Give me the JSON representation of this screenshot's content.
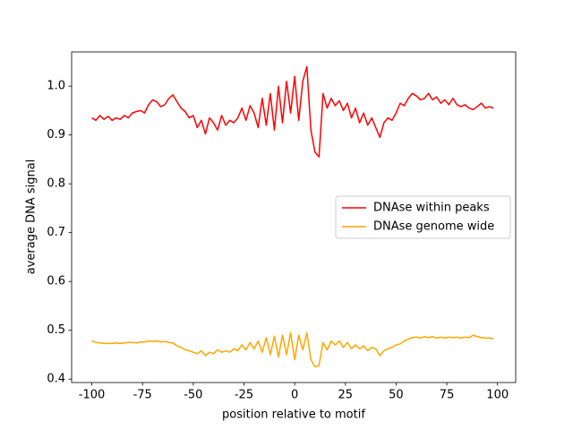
{
  "chart_data": {
    "type": "line",
    "xlabel": "position relative to motif",
    "ylabel": "average DNA signal",
    "x": [
      -100,
      -98,
      -96,
      -94,
      -92,
      -90,
      -88,
      -86,
      -84,
      -82,
      -80,
      -78,
      -76,
      -74,
      -72,
      -70,
      -68,
      -66,
      -64,
      -62,
      -60,
      -58,
      -56,
      -54,
      -52,
      -50,
      -48,
      -46,
      -44,
      -42,
      -40,
      -38,
      -36,
      -34,
      -32,
      -30,
      -28,
      -26,
      -24,
      -22,
      -20,
      -18,
      -16,
      -14,
      -12,
      -10,
      -8,
      -6,
      -4,
      -2,
      0,
      2,
      4,
      6,
      8,
      10,
      12,
      14,
      16,
      18,
      20,
      22,
      24,
      26,
      28,
      30,
      32,
      34,
      36,
      38,
      40,
      42,
      44,
      46,
      48,
      50,
      52,
      54,
      56,
      58,
      60,
      62,
      64,
      66,
      68,
      70,
      72,
      74,
      76,
      78,
      80,
      82,
      84,
      86,
      88,
      90,
      92,
      94,
      96,
      98
    ],
    "series": [
      {
        "name": "DNAse within peaks",
        "color": "#ff0000",
        "values": [
          0.935,
          0.93,
          0.94,
          0.932,
          0.938,
          0.93,
          0.935,
          0.932,
          0.94,
          0.935,
          0.945,
          0.948,
          0.95,
          0.945,
          0.962,
          0.972,
          0.968,
          0.958,
          0.962,
          0.975,
          0.982,
          0.968,
          0.955,
          0.948,
          0.935,
          0.94,
          0.915,
          0.93,
          0.902,
          0.935,
          0.925,
          0.91,
          0.94,
          0.92,
          0.93,
          0.925,
          0.935,
          0.955,
          0.93,
          0.96,
          0.945,
          0.915,
          0.975,
          0.92,
          0.985,
          0.91,
          1.0,
          0.925,
          1.01,
          0.945,
          1.02,
          0.93,
          1.01,
          1.04,
          0.91,
          0.865,
          0.855,
          0.985,
          0.955,
          0.975,
          0.96,
          0.97,
          0.95,
          0.965,
          0.935,
          0.955,
          0.925,
          0.945,
          0.92,
          0.935,
          0.915,
          0.895,
          0.925,
          0.935,
          0.93,
          0.945,
          0.965,
          0.96,
          0.975,
          0.985,
          0.98,
          0.972,
          0.975,
          0.985,
          0.972,
          0.978,
          0.965,
          0.972,
          0.962,
          0.975,
          0.962,
          0.958,
          0.962,
          0.955,
          0.952,
          0.958,
          0.965,
          0.955,
          0.958,
          0.955
        ]
      },
      {
        "name": "DNAse genome wide",
        "color": "#ffa500",
        "values": [
          0.478,
          0.475,
          0.474,
          0.473,
          0.473,
          0.473,
          0.474,
          0.473,
          0.474,
          0.475,
          0.475,
          0.474,
          0.476,
          0.476,
          0.478,
          0.477,
          0.478,
          0.476,
          0.477,
          0.475,
          0.474,
          0.468,
          0.465,
          0.46,
          0.458,
          0.455,
          0.452,
          0.458,
          0.448,
          0.455,
          0.452,
          0.46,
          0.455,
          0.458,
          0.455,
          0.462,
          0.458,
          0.47,
          0.46,
          0.475,
          0.462,
          0.478,
          0.455,
          0.485,
          0.45,
          0.488,
          0.445,
          0.49,
          0.45,
          0.495,
          0.44,
          0.49,
          0.46,
          0.495,
          0.44,
          0.425,
          0.428,
          0.475,
          0.46,
          0.478,
          0.47,
          0.478,
          0.465,
          0.475,
          0.462,
          0.47,
          0.462,
          0.468,
          0.458,
          0.465,
          0.462,
          0.448,
          0.458,
          0.462,
          0.465,
          0.47,
          0.472,
          0.478,
          0.482,
          0.485,
          0.486,
          0.484,
          0.487,
          0.485,
          0.487,
          0.484,
          0.486,
          0.484,
          0.486,
          0.485,
          0.486,
          0.484,
          0.486,
          0.485,
          0.49,
          0.487,
          0.485,
          0.484,
          0.484,
          0.483
        ]
      }
    ],
    "xlim": [
      -109.95,
      108.95
    ],
    "ylim": [
      0.393,
      1.07
    ],
    "xticks": [
      -100,
      -75,
      -50,
      -25,
      0,
      25,
      50,
      75,
      100
    ],
    "yticks": [
      0.4,
      0.5,
      0.6,
      0.7,
      0.8,
      0.9,
      {
        "value": 1,
        "label": "1.0"
      }
    ],
    "legend": "center right",
    "grid": false
  }
}
